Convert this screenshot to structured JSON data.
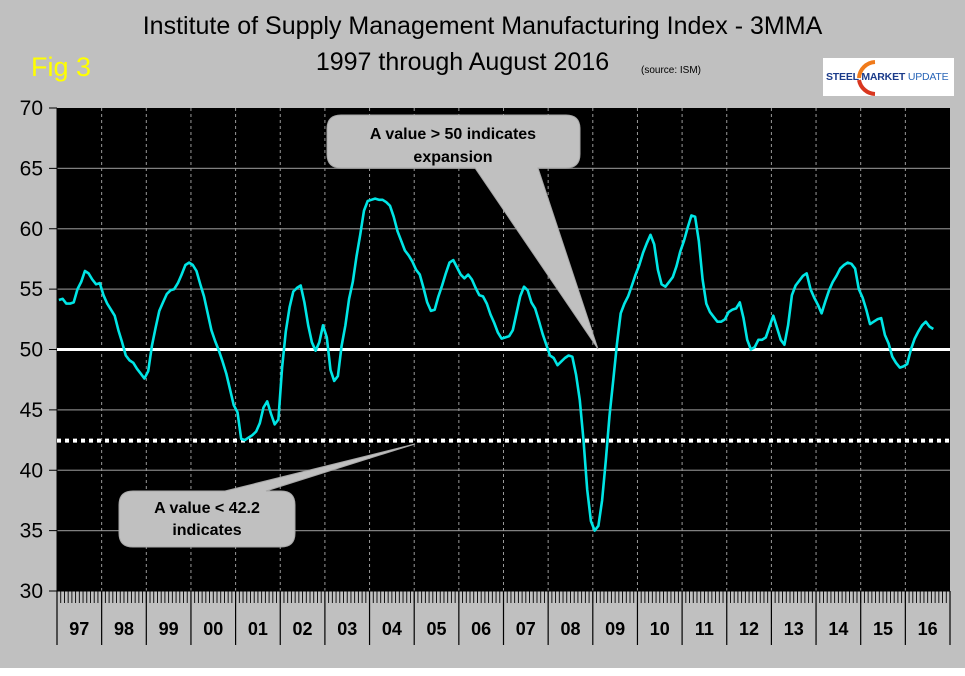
{
  "header": {
    "title": "Institute of Supply Management Manufacturing Index - 3MMA",
    "subtitle": "1997 through August 2016",
    "source": "(source: ISM)",
    "figure_label": "Fig 3",
    "logo": {
      "word1": "STEEL",
      "word2": "MARKET",
      "word3": "UPDATE"
    }
  },
  "colors": {
    "background": "#c0c0c0",
    "plot_background": "#000000",
    "series": "#00e5e5",
    "figure_label": "#ffff00",
    "reference_lines": "#ffffff",
    "callout_fill": "#c0c0c0"
  },
  "chart_data": {
    "type": "line",
    "title": "Institute of Supply Management Manufacturing Index - 3MMA",
    "subtitle": "1997 through August 2016",
    "xlabel": "",
    "ylabel": "",
    "ylim": [
      30,
      70
    ],
    "yticks": [
      70,
      65,
      60,
      55,
      50,
      45,
      40,
      35,
      30
    ],
    "x_range": {
      "start": "1997-01",
      "end": "2016-12",
      "months": 240
    },
    "x_tick_labels": [
      "97",
      "98",
      "99",
      "00",
      "01",
      "02",
      "03",
      "04",
      "05",
      "06",
      "07",
      "08",
      "09",
      "10",
      "11",
      "12",
      "13",
      "14",
      "15",
      "16"
    ],
    "grid": {
      "horizontal": true,
      "vertical_dotted_per_year": true,
      "minor_ticks_monthly": true
    },
    "legend": "none",
    "series": [
      {
        "name": "ISM Manufacturing Index 3MMA",
        "start": "1997-01",
        "frequency": "monthly",
        "values": [
          54.1,
          54.2,
          53.8,
          53.8,
          53.9,
          55.0,
          55.6,
          56.5,
          56.3,
          55.8,
          55.4,
          55.5,
          54.5,
          53.8,
          53.3,
          52.8,
          51.6,
          50.6,
          49.5,
          49.1,
          48.9,
          48.4,
          48.0,
          47.6,
          48.2,
          50.3,
          51.8,
          53.2,
          53.9,
          54.6,
          54.9,
          55.0,
          55.5,
          56.2,
          57.0,
          57.2,
          57.0,
          56.5,
          55.4,
          54.4,
          53.0,
          51.6,
          50.7,
          49.9,
          49.0,
          48.0,
          46.7,
          45.4,
          44.8,
          42.6,
          42.5,
          42.7,
          42.9,
          43.2,
          43.9,
          45.2,
          45.7,
          44.7,
          43.8,
          44.2,
          48.5,
          51.5,
          53.5,
          54.8,
          55.1,
          55.3,
          53.9,
          52.0,
          50.6,
          49.9,
          50.6,
          52.0,
          51.0,
          48.3,
          47.4,
          47.8,
          50.3,
          52.0,
          54.2,
          55.6,
          57.7,
          59.5,
          61.5,
          62.3,
          62.4,
          62.5,
          62.4,
          62.4,
          62.2,
          61.9,
          61.0,
          59.8,
          59.0,
          58.2,
          57.8,
          57.3,
          56.6,
          56.2,
          55.1,
          53.9,
          53.2,
          53.3,
          54.4,
          55.3,
          56.3,
          57.2,
          57.4,
          56.8,
          56.2,
          55.9,
          56.2,
          55.8,
          55.1,
          54.5,
          54.4,
          53.8,
          52.9,
          52.2,
          51.4,
          50.9,
          51.0,
          51.1,
          51.6,
          53.0,
          54.4,
          55.2,
          54.9,
          53.9,
          53.4,
          52.4,
          51.3,
          50.4,
          49.5,
          49.3,
          48.7,
          49.0,
          49.3,
          49.5,
          49.4,
          47.9,
          45.8,
          42.5,
          38.4,
          35.8,
          35.0,
          35.4,
          37.5,
          40.8,
          44.5,
          47.5,
          50.5,
          53.0,
          53.8,
          54.4,
          55.3,
          56.2,
          57.0,
          58.0,
          58.8,
          59.5,
          58.7,
          56.6,
          55.4,
          55.2,
          55.6,
          56.0,
          56.9,
          58.1,
          59.0,
          60.1,
          61.1,
          61.0,
          59.0,
          55.8,
          53.8,
          53.1,
          52.7,
          52.3,
          52.3,
          52.5,
          53.1,
          53.3,
          53.4,
          53.9,
          52.6,
          50.8,
          50.0,
          50.2,
          50.8,
          50.8,
          51.0,
          51.9,
          52.8,
          51.8,
          50.8,
          50.4,
          52.0,
          54.5,
          55.3,
          55.7,
          56.1,
          56.3,
          55.0,
          54.3,
          53.7,
          53.0,
          54.0,
          54.9,
          55.6,
          56.1,
          56.7,
          57.0,
          57.2,
          57.1,
          56.7,
          55.0,
          54.3,
          53.3,
          52.1,
          52.3,
          52.5,
          52.6,
          51.2,
          50.5,
          49.4,
          48.9,
          48.5,
          48.6,
          48.8,
          50.0,
          50.9,
          51.5,
          52.0,
          52.3,
          51.9,
          51.7
        ]
      }
    ],
    "reference_lines": [
      {
        "name": "expansion-threshold",
        "value": 50,
        "style": "solid"
      },
      {
        "name": "economy-expansion-threshold",
        "value": 42.2,
        "style": "dotted"
      }
    ],
    "annotations": [
      {
        "name": "expansion-callout",
        "line1": "A value > 50 indicates",
        "line2": "expansion",
        "points_to": {
          "month": "2009-01",
          "value": 50
        }
      },
      {
        "name": "contraction-callout",
        "line1": "A value < 42.2",
        "line2": "indicates",
        "points_to": {
          "month": "2004-06",
          "value": 42.2
        }
      }
    ]
  }
}
